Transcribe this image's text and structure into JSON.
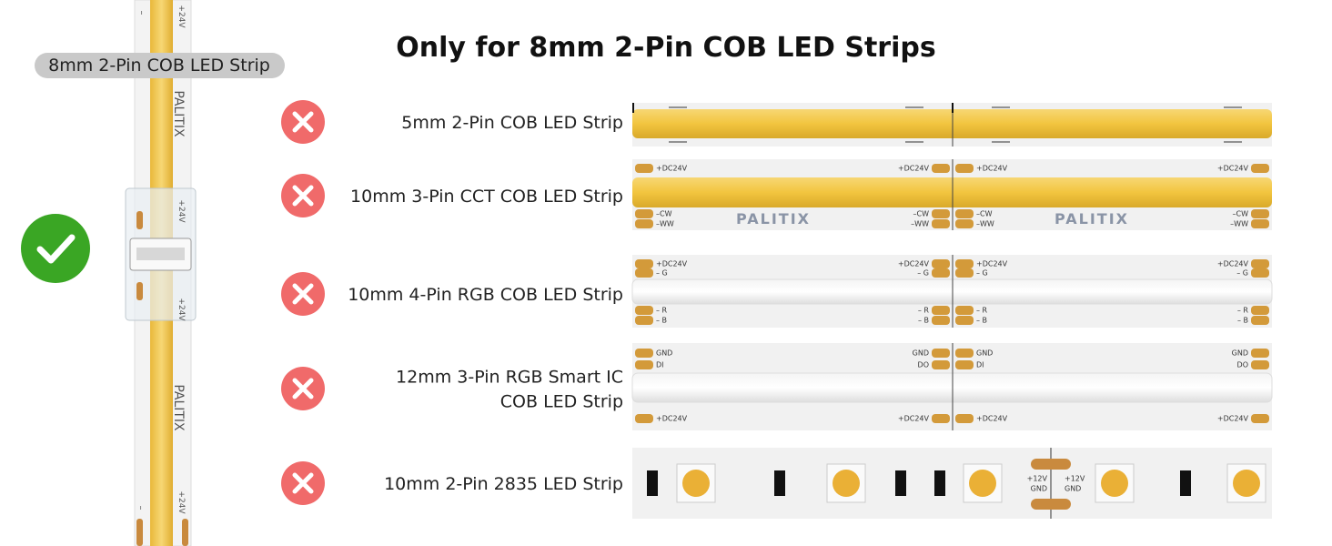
{
  "header": {
    "title": "Only for 8mm 2-Pin COB LED Strips"
  },
  "product": {
    "label": "8mm 2-Pin COB LED Strip",
    "brand": "PALITIX",
    "polarity": [
      "–",
      "+24V"
    ],
    "compatible": true
  },
  "strips": [
    {
      "label_lines": [
        "5mm 2-Pin COB LED Strip"
      ],
      "compatible": false,
      "pins_start": [],
      "pins_end": []
    },
    {
      "label_lines": [
        "10mm 3-Pin CCT COB LED Strip"
      ],
      "compatible": false,
      "brand": "PALITIX",
      "pins_start": [
        "+DC24V",
        "–CW",
        "–WW"
      ],
      "pins_end": [
        "+DC24V",
        "–CW",
        "–WW"
      ]
    },
    {
      "label_lines": [
        "10mm 4-Pin RGB COB LED Strip"
      ],
      "compatible": false,
      "pins_start": [
        "+DC24V",
        "– G",
        "– R",
        "– B"
      ],
      "pins_end": [
        "+DC24V",
        "– G",
        "– R",
        "– B"
      ]
    },
    {
      "label_lines": [
        "12mm 3-Pin RGB Smart IC",
        "COB LED Strip"
      ],
      "compatible": false,
      "pins_start": [
        "GND",
        "DI",
        "+DC24V"
      ],
      "pins_end": [
        "GND",
        "DO",
        "+DC24V"
      ]
    },
    {
      "label_lines": [
        "10mm 2-Pin 2835 LED Strip"
      ],
      "compatible": false,
      "pins_start": [
        "+12V",
        "GND"
      ],
      "pins_end": [
        "+12V",
        "GND"
      ]
    }
  ]
}
